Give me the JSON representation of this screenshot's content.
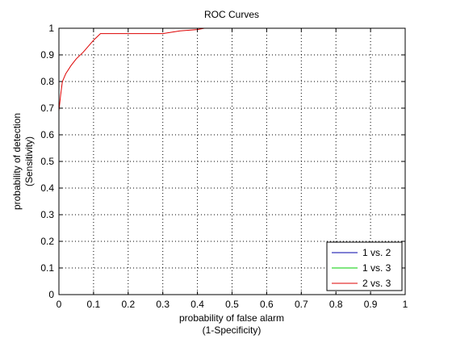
{
  "chart_data": {
    "type": "line",
    "title": "ROC Curves",
    "xlabel_line1": "probability of false alarm",
    "xlabel_line2": "(1-Specificity)",
    "ylabel_line1": "probability of detection",
    "ylabel_line2": "(Sensitivity)",
    "xlim": [
      0,
      1
    ],
    "ylim": [
      0,
      1
    ],
    "x_ticks": [
      0,
      0.1,
      0.2,
      0.3,
      0.4,
      0.5,
      0.6,
      0.7,
      0.8,
      0.9,
      1
    ],
    "x_tick_labels": [
      "0",
      "0.1",
      "0.2",
      "0.3",
      "0.4",
      "0.5",
      "0.6",
      "0.7",
      "0.8",
      "0.9",
      "1"
    ],
    "y_ticks": [
      0,
      0.1,
      0.2,
      0.3,
      0.4,
      0.5,
      0.6,
      0.7,
      0.8,
      0.9,
      1
    ],
    "y_tick_labels": [
      "0",
      "0.1",
      "0.2",
      "0.3",
      "0.4",
      "0.5",
      "0.6",
      "0.7",
      "0.8",
      "0.9",
      "1"
    ],
    "grid": true,
    "legend_position": "bottom-right",
    "series": [
      {
        "name": "1 vs. 2",
        "color": "#0000aa",
        "x": [
          0,
          1
        ],
        "y": [
          1,
          1
        ]
      },
      {
        "name": "1 vs. 3",
        "color": "#00cc00",
        "x": [
          0,
          1
        ],
        "y": [
          1,
          1
        ]
      },
      {
        "name": "2 vs. 3",
        "color": "#dd0000",
        "x": [
          0,
          0.005,
          0.01,
          0.02,
          0.035,
          0.05,
          0.07,
          0.09,
          0.1,
          0.12,
          0.15,
          0.2,
          0.25,
          0.3,
          0.35,
          0.4,
          0.42,
          0.5,
          0.6,
          0.7,
          0.8,
          0.9,
          1
        ],
        "y": [
          0.69,
          0.75,
          0.8,
          0.83,
          0.86,
          0.885,
          0.91,
          0.94,
          0.955,
          0.98,
          0.98,
          0.98,
          0.98,
          0.98,
          0.99,
          0.995,
          1,
          1,
          1,
          1,
          1,
          1,
          1
        ]
      }
    ]
  }
}
